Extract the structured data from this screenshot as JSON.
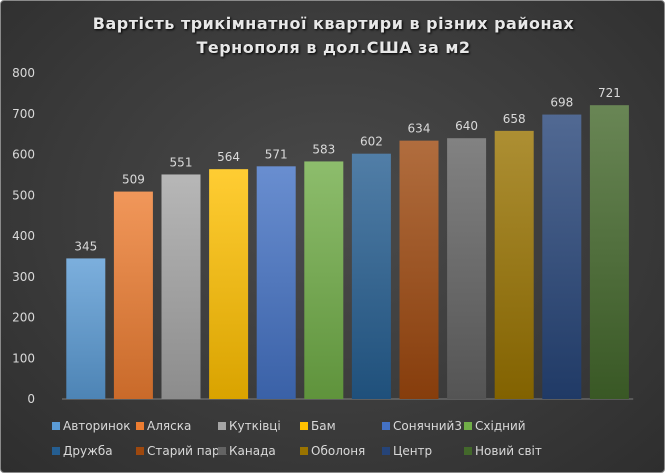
{
  "chart_data": {
    "type": "bar",
    "title_lines": [
      "Вартість трикімнатної квартири в різних районах",
      "Тернополя в дол.США за м2"
    ],
    "categories": [
      "Авторинок",
      "Аляска",
      "Кутківці",
      "Бам",
      "Сонячний3",
      "Східний",
      "Дружба",
      "Старий парк",
      "Канада",
      "Оболоня",
      "Центр",
      "Новий світ"
    ],
    "values": [
      345,
      509,
      551,
      564,
      571,
      583,
      602,
      634,
      640,
      658,
      698,
      721
    ],
    "colors": [
      "#5b9bd5",
      "#ed7d31",
      "#a5a5a5",
      "#ffc000",
      "#4472c4",
      "#70ad47",
      "#255e91",
      "#9e480e",
      "#636363",
      "#997300",
      "#264478",
      "#43682b"
    ],
    "ylim": [
      0,
      800
    ],
    "yticks": [
      0,
      100,
      200,
      300,
      400,
      500,
      600,
      700,
      800
    ],
    "xlabel": "",
    "ylabel": "",
    "grid": false,
    "legend_position": "bottom"
  }
}
